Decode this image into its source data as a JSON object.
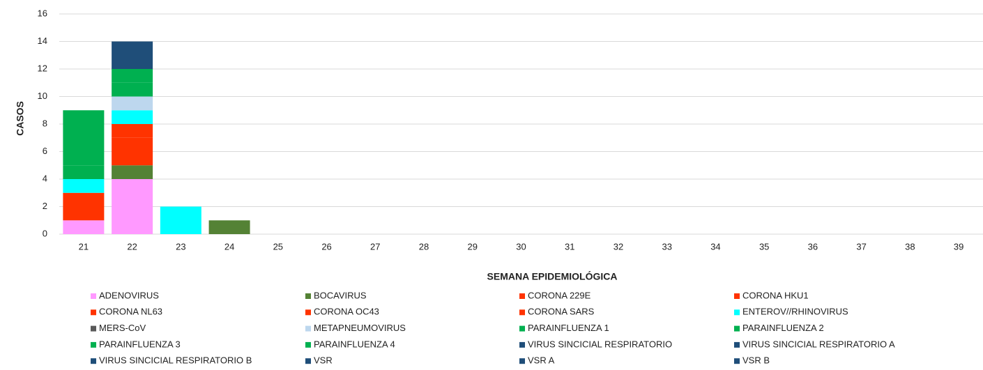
{
  "chart_data": {
    "type": "bar",
    "stacked": true,
    "x_label": "SEMANA EPIDEMIOLÓGICA",
    "y_label": "CASOS",
    "categories": [
      "21",
      "22",
      "23",
      "24",
      "25",
      "26",
      "27",
      "28",
      "29",
      "30",
      "31",
      "32",
      "33",
      "34",
      "35",
      "36",
      "37",
      "38",
      "39"
    ],
    "ylim": [
      0,
      16
    ],
    "yticks": [
      0,
      2,
      4,
      6,
      8,
      10,
      12,
      14,
      16
    ],
    "grid": true,
    "series": [
      {
        "name": "ADENOVIRUS",
        "color": "#ff99ff",
        "values": [
          1,
          4,
          0,
          0,
          0,
          0,
          0,
          0,
          0,
          0,
          0,
          0,
          0,
          0,
          0,
          0,
          0,
          0,
          0
        ]
      },
      {
        "name": "BOCAVIRUS",
        "color": "#548235",
        "values": [
          0,
          1,
          0,
          1,
          0,
          0,
          0,
          0,
          0,
          0,
          0,
          0,
          0,
          0,
          0,
          0,
          0,
          0,
          0
        ]
      },
      {
        "name": "CORONA 229E",
        "color": "#ff3300",
        "values": [
          2,
          2,
          0,
          0,
          0,
          0,
          0,
          0,
          0,
          0,
          0,
          0,
          0,
          0,
          0,
          0,
          0,
          0,
          0
        ]
      },
      {
        "name": "CORONA HKU1",
        "color": "#ff3300",
        "values": [
          0,
          0,
          0,
          0,
          0,
          0,
          0,
          0,
          0,
          0,
          0,
          0,
          0,
          0,
          0,
          0,
          0,
          0,
          0
        ]
      },
      {
        "name": "CORONA NL63",
        "color": "#ff3300",
        "values": [
          0,
          1,
          0,
          0,
          0,
          0,
          0,
          0,
          0,
          0,
          0,
          0,
          0,
          0,
          0,
          0,
          0,
          0,
          0
        ]
      },
      {
        "name": "CORONA OC43",
        "color": "#ff3300",
        "values": [
          0,
          0,
          0,
          0,
          0,
          0,
          0,
          0,
          0,
          0,
          0,
          0,
          0,
          0,
          0,
          0,
          0,
          0,
          0
        ]
      },
      {
        "name": "CORONA SARS",
        "color": "#ff3300",
        "values": [
          0,
          0,
          0,
          0,
          0,
          0,
          0,
          0,
          0,
          0,
          0,
          0,
          0,
          0,
          0,
          0,
          0,
          0,
          0
        ]
      },
      {
        "name": "ENTEROV//RHINOVIRUS",
        "color": "#00ffff",
        "values": [
          1,
          1,
          2,
          0,
          0,
          0,
          0,
          0,
          0,
          0,
          0,
          0,
          0,
          0,
          0,
          0,
          0,
          0,
          0
        ]
      },
      {
        "name": "MERS-CoV",
        "color": "#595959",
        "values": [
          0,
          0,
          0,
          0,
          0,
          0,
          0,
          0,
          0,
          0,
          0,
          0,
          0,
          0,
          0,
          0,
          0,
          0,
          0
        ]
      },
      {
        "name": "METAPNEUMOVIRUS",
        "color": "#bdd7ee",
        "values": [
          0,
          1,
          0,
          0,
          0,
          0,
          0,
          0,
          0,
          0,
          0,
          0,
          0,
          0,
          0,
          0,
          0,
          0,
          0
        ]
      },
      {
        "name": "PARAINFLUENZA 1",
        "color": "#00b050",
        "values": [
          1,
          1,
          0,
          0,
          0,
          0,
          0,
          0,
          0,
          0,
          0,
          0,
          0,
          0,
          0,
          0,
          0,
          0,
          0
        ]
      },
      {
        "name": "PARAINFLUENZA 2",
        "color": "#00b050",
        "values": [
          0,
          1,
          0,
          0,
          0,
          0,
          0,
          0,
          0,
          0,
          0,
          0,
          0,
          0,
          0,
          0,
          0,
          0,
          0
        ]
      },
      {
        "name": "PARAINFLUENZA 3",
        "color": "#00b050",
        "values": [
          4,
          0,
          0,
          0,
          0,
          0,
          0,
          0,
          0,
          0,
          0,
          0,
          0,
          0,
          0,
          0,
          0,
          0,
          0
        ]
      },
      {
        "name": "PARAINFLUENZA 4",
        "color": "#00b050",
        "values": [
          0,
          0,
          0,
          0,
          0,
          0,
          0,
          0,
          0,
          0,
          0,
          0,
          0,
          0,
          0,
          0,
          0,
          0,
          0
        ]
      },
      {
        "name": "VIRUS SINCICIAL RESPIRATORIO",
        "color": "#1f4e79",
        "values": [
          0,
          2,
          0,
          0,
          0,
          0,
          0,
          0,
          0,
          0,
          0,
          0,
          0,
          0,
          0,
          0,
          0,
          0,
          0
        ]
      },
      {
        "name": "VIRUS SINCICIAL RESPIRATORIO A",
        "color": "#1f4e79",
        "values": [
          0,
          0,
          0,
          0,
          0,
          0,
          0,
          0,
          0,
          0,
          0,
          0,
          0,
          0,
          0,
          0,
          0,
          0,
          0
        ]
      },
      {
        "name": "VIRUS SINCICIAL RESPIRATORIO B",
        "color": "#1f4e79",
        "values": [
          0,
          0,
          0,
          0,
          0,
          0,
          0,
          0,
          0,
          0,
          0,
          0,
          0,
          0,
          0,
          0,
          0,
          0,
          0
        ]
      },
      {
        "name": "VSR",
        "color": "#1f4e79",
        "values": [
          0,
          0,
          0,
          0,
          0,
          0,
          0,
          0,
          0,
          0,
          0,
          0,
          0,
          0,
          0,
          0,
          0,
          0,
          0
        ]
      },
      {
        "name": "VSR A",
        "color": "#1f4e79",
        "values": [
          0,
          0,
          0,
          0,
          0,
          0,
          0,
          0,
          0,
          0,
          0,
          0,
          0,
          0,
          0,
          0,
          0,
          0,
          0
        ]
      },
      {
        "name": "VSR B",
        "color": "#1f4e79",
        "values": [
          0,
          0,
          0,
          0,
          0,
          0,
          0,
          0,
          0,
          0,
          0,
          0,
          0,
          0,
          0,
          0,
          0,
          0,
          0
        ]
      }
    ]
  }
}
